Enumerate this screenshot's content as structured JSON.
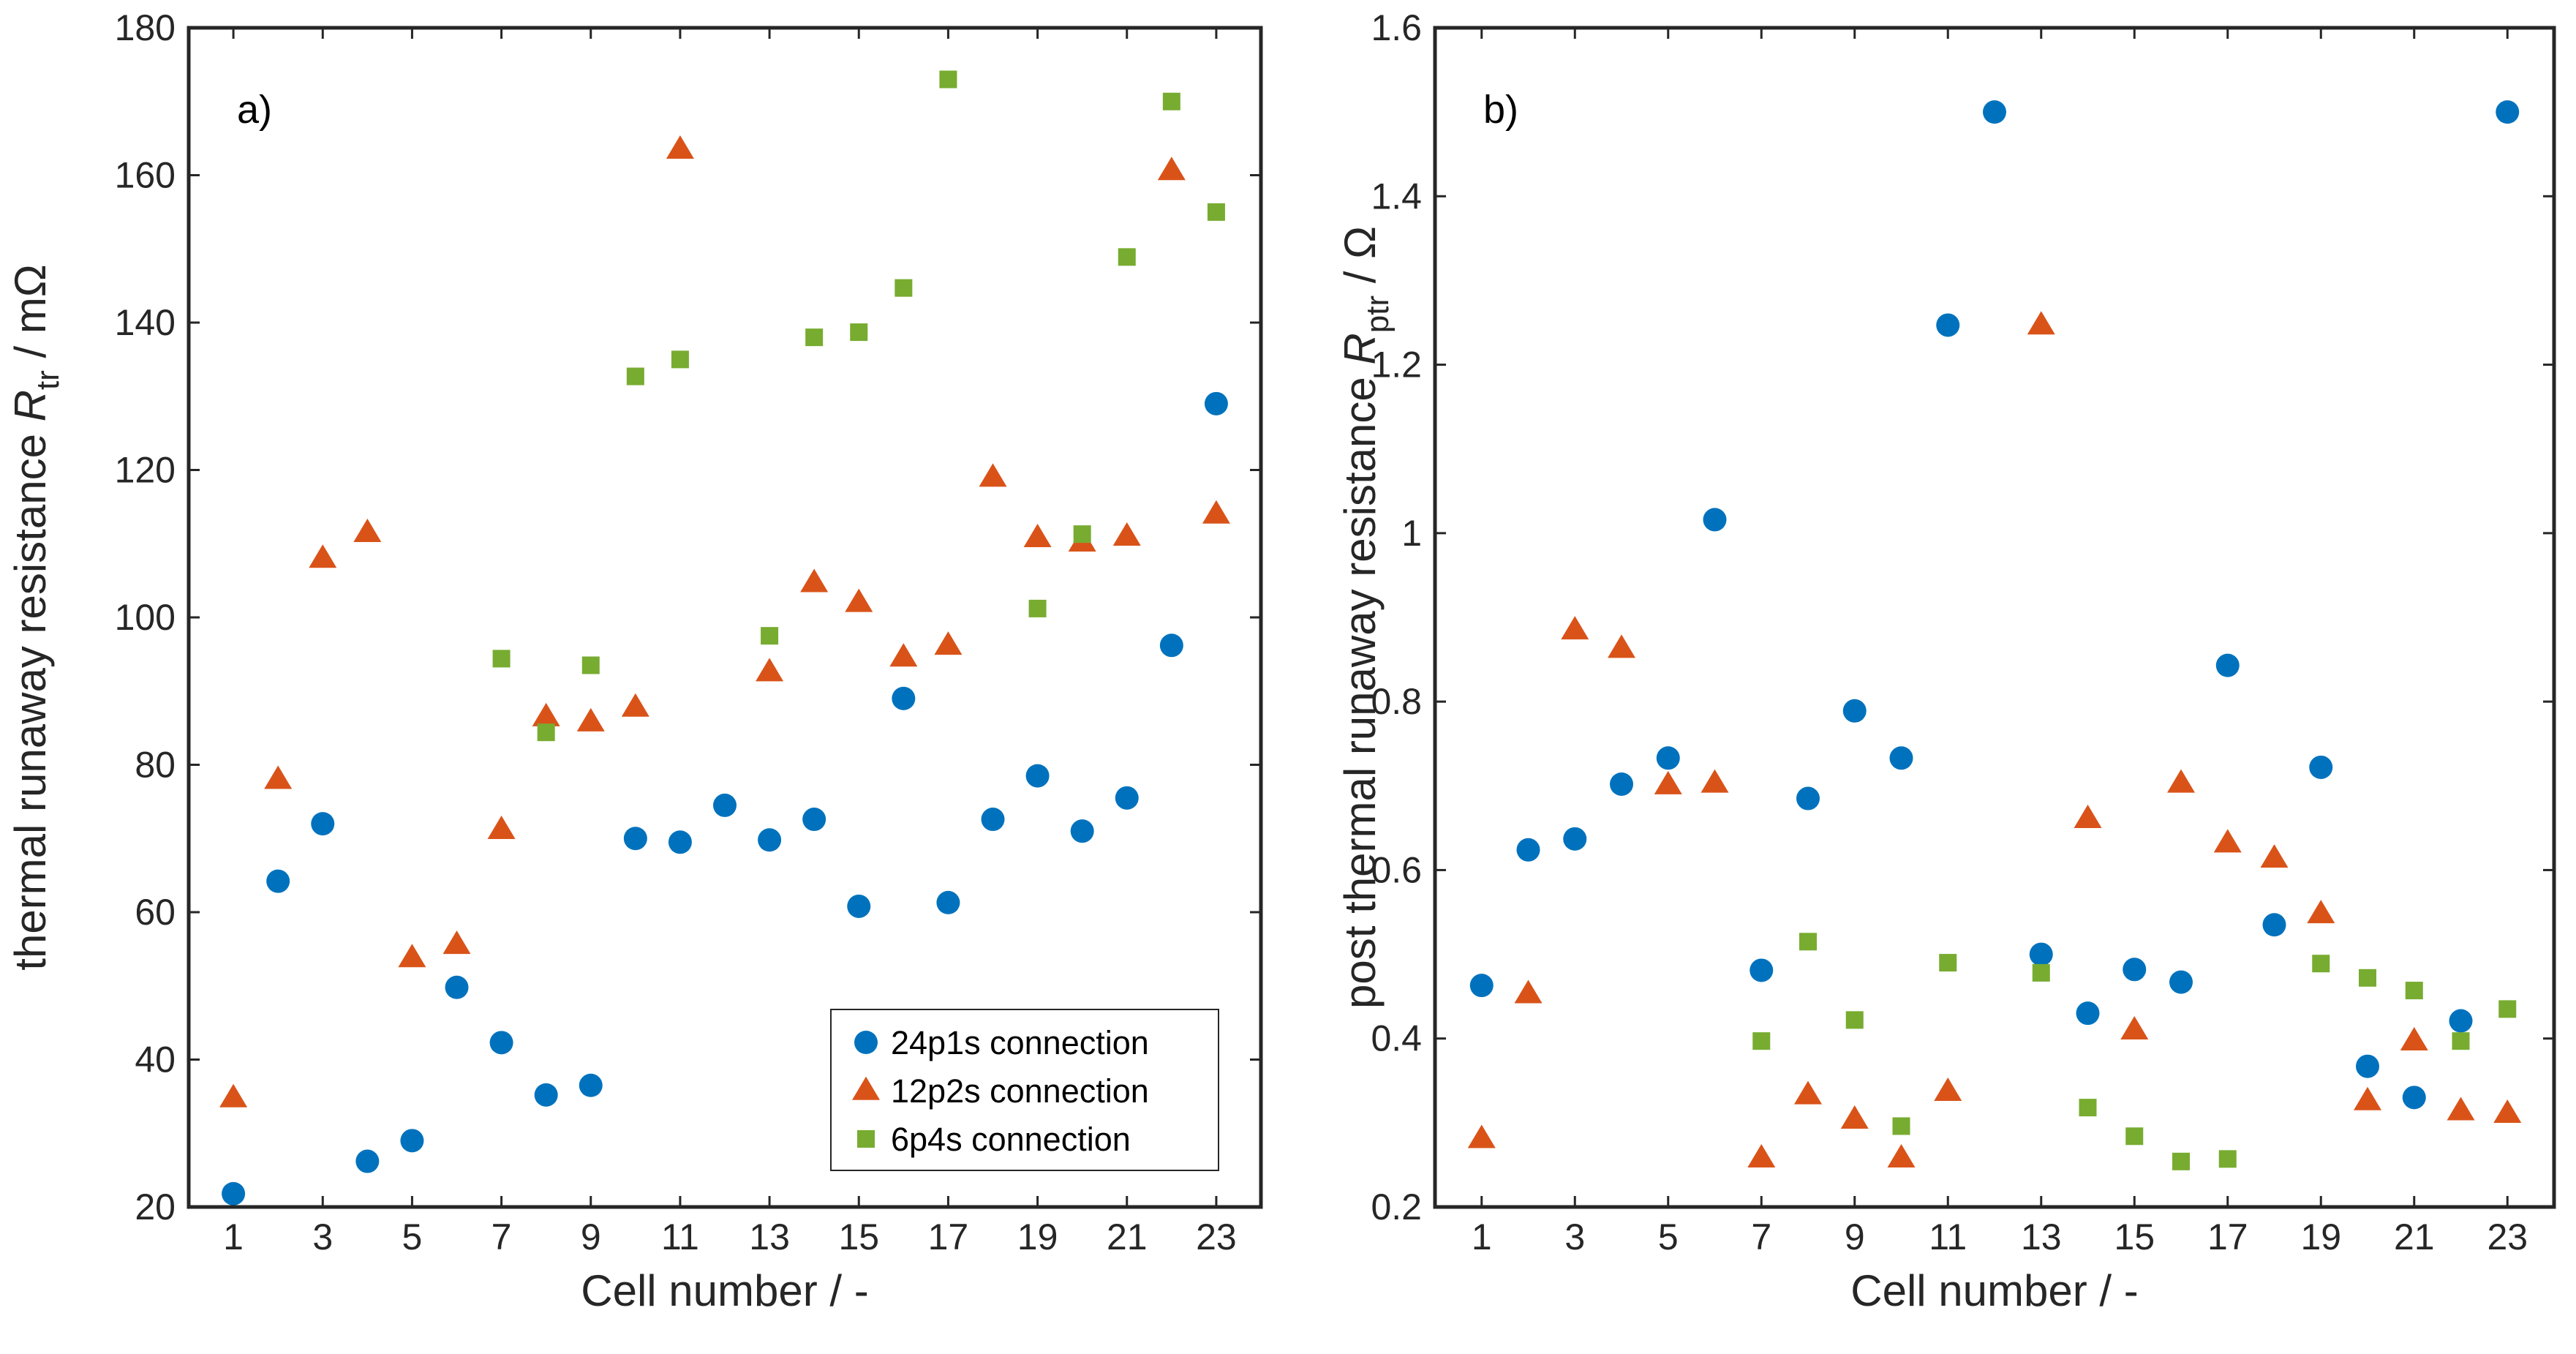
{
  "colors": {
    "s24p1s": "#0072BD",
    "s12p2s": "#D95319",
    "s6p4s": "#77AC30",
    "axis": "#262626"
  },
  "legend": {
    "items": [
      "24p1s connection",
      "12p2s connection",
      "6p4s connection"
    ]
  },
  "chart_data": [
    {
      "type": "scatter",
      "panel_label": "a)",
      "xlabel": "Cell number / -",
      "ylabel_main": "thermal runaway resistance ",
      "ylabel_symbol": "R",
      "ylabel_sub": "tr",
      "ylabel_unit": " / mΩ",
      "xlim": [
        0,
        24
      ],
      "ylim": [
        20,
        180
      ],
      "xticks": [
        1,
        3,
        5,
        7,
        9,
        11,
        13,
        15,
        17,
        19,
        21,
        23
      ],
      "yticks": [
        20,
        40,
        60,
        80,
        100,
        120,
        140,
        160,
        180
      ],
      "legend_position": "bottom-right",
      "series": [
        {
          "name": "24p1s connection",
          "marker": "circle",
          "points": [
            [
              1,
              21.8
            ],
            [
              2,
              64.2
            ],
            [
              3,
              72
            ],
            [
              4,
              26.2
            ],
            [
              5,
              29
            ],
            [
              6,
              49.8
            ],
            [
              7,
              42.3
            ],
            [
              8,
              35.2
            ],
            [
              9,
              36.5
            ],
            [
              10,
              70
            ],
            [
              11,
              69.5
            ],
            [
              12,
              74.5
            ],
            [
              13,
              69.8
            ],
            [
              14,
              72.6
            ],
            [
              15,
              60.8
            ],
            [
              16,
              89
            ],
            [
              17,
              61.3
            ],
            [
              18,
              72.6
            ],
            [
              19,
              78.5
            ],
            [
              20,
              71
            ],
            [
              21,
              75.5
            ],
            [
              22,
              96.2
            ],
            [
              23,
              129
            ]
          ]
        },
        {
          "name": "12p2s connection",
          "marker": "triangle",
          "points": [
            [
              1,
              34.8
            ],
            [
              2,
              78
            ],
            [
              3,
              108
            ],
            [
              4,
              111.5
            ],
            [
              5,
              53.8
            ],
            [
              6,
              55.6
            ],
            [
              7,
              71.2
            ],
            [
              8,
              86.5
            ],
            [
              9,
              85.8
            ],
            [
              10,
              87.8
            ],
            [
              11,
              163.5
            ],
            [
              13,
              92.6
            ],
            [
              14,
              104.7
            ],
            [
              15,
              102
            ],
            [
              16,
              94.6
            ],
            [
              17,
              96.2
            ],
            [
              18,
              119
            ],
            [
              19,
              110.8
            ],
            [
              20,
              110.2
            ],
            [
              21,
              111
            ],
            [
              22,
              160.6
            ],
            [
              23,
              114
            ]
          ]
        },
        {
          "name": "6p4s connection",
          "marker": "square",
          "points": [
            [
              7,
              94.4
            ],
            [
              8,
              84.4
            ],
            [
              9,
              93.5
            ],
            [
              10,
              132.7
            ],
            [
              11,
              135
            ],
            [
              13,
              97.5
            ],
            [
              14,
              138
            ],
            [
              15,
              138.7
            ],
            [
              16,
              144.7
            ],
            [
              17,
              173
            ],
            [
              19,
              101.2
            ],
            [
              20,
              111.3
            ],
            [
              21,
              148.9
            ],
            [
              22,
              170
            ],
            [
              23,
              155
            ]
          ]
        }
      ]
    },
    {
      "type": "scatter",
      "panel_label": "b)",
      "xlabel": "Cell number / -",
      "ylabel_main": "post thermal runaway resistance ",
      "ylabel_symbol": "R",
      "ylabel_sub": "ptr",
      "ylabel_unit": " / Ω",
      "xlim": [
        0,
        24
      ],
      "ylim": [
        0.2,
        1.6
      ],
      "xticks": [
        1,
        3,
        5,
        7,
        9,
        11,
        13,
        15,
        17,
        19,
        21,
        23
      ],
      "yticks": [
        0.2,
        0.4,
        0.6,
        0.8,
        1,
        1.2,
        1.4,
        1.6
      ],
      "series": [
        {
          "name": "24p1s connection",
          "marker": "circle",
          "points": [
            [
              1,
              0.463
            ],
            [
              2,
              0.624
            ],
            [
              3,
              0.637
            ],
            [
              4,
              0.702
            ],
            [
              5,
              0.733
            ],
            [
              6,
              1.016
            ],
            [
              7,
              0.481
            ],
            [
              8,
              0.685
            ],
            [
              9,
              0.789
            ],
            [
              10,
              0.733
            ],
            [
              11,
              1.247
            ],
            [
              12,
              1.5
            ],
            [
              13,
              0.5
            ],
            [
              14,
              0.43
            ],
            [
              15,
              0.482
            ],
            [
              16,
              0.467
            ],
            [
              17,
              0.843
            ],
            [
              18,
              0.535
            ],
            [
              19,
              0.722
            ],
            [
              20,
              0.367
            ],
            [
              21,
              0.33
            ],
            [
              22,
              0.421
            ],
            [
              23,
              1.5
            ]
          ]
        },
        {
          "name": "12p2s connection",
          "marker": "triangle",
          "points": [
            [
              1,
              0.281
            ],
            [
              2,
              0.453
            ],
            [
              3,
              0.885
            ],
            [
              4,
              0.863
            ],
            [
              5,
              0.701
            ],
            [
              6,
              0.703
            ],
            [
              7,
              0.258
            ],
            [
              8,
              0.333
            ],
            [
              9,
              0.304
            ],
            [
              10,
              0.258
            ],
            [
              11,
              0.337
            ],
            [
              13,
              1.247
            ],
            [
              14,
              0.661
            ],
            [
              15,
              0.41
            ],
            [
              16,
              0.703
            ],
            [
              17,
              0.632
            ],
            [
              18,
              0.614
            ],
            [
              19,
              0.548
            ],
            [
              20,
              0.326
            ],
            [
              21,
              0.397
            ],
            [
              22,
              0.314
            ],
            [
              23,
              0.311
            ]
          ]
        },
        {
          "name": "6p4s connection",
          "marker": "square",
          "points": [
            [
              7,
              0.397
            ],
            [
              8,
              0.515
            ],
            [
              9,
              0.422
            ],
            [
              10,
              0.296
            ],
            [
              11,
              0.49
            ],
            [
              13,
              0.478
            ],
            [
              14,
              0.318
            ],
            [
              15,
              0.284
            ],
            [
              16,
              0.254
            ],
            [
              17,
              0.257
            ],
            [
              19,
              0.489
            ],
            [
              20,
              0.472
            ],
            [
              21,
              0.457
            ],
            [
              22,
              0.397
            ],
            [
              23,
              0.435
            ]
          ]
        }
      ]
    }
  ]
}
